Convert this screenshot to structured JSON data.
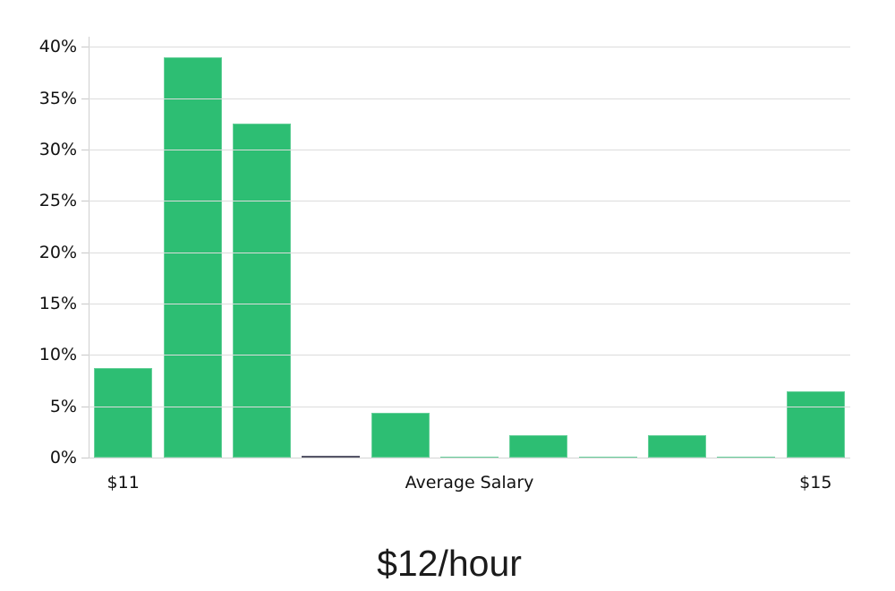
{
  "chart_data": {
    "type": "bar",
    "title": "$12/hour",
    "xlabel": "",
    "ylabel": "",
    "values": [
      8.7,
      39,
      32.5,
      0.15,
      4.35,
      0.1,
      2.2,
      0.1,
      2.2,
      0.1,
      6.5
    ],
    "bar_colors": [
      "#2dbe73",
      "#2dbe73",
      "#2dbe73",
      "#15152e",
      "#2dbe73",
      "#2dbe73",
      "#2dbe73",
      "#2dbe73",
      "#2dbe73",
      "#2dbe73",
      "#2dbe73"
    ],
    "unit": "%",
    "ylim": [
      0,
      41
    ],
    "grid": "horizontal",
    "legend": "none",
    "y_ticks": [
      {
        "label": "0%",
        "value": 0
      },
      {
        "label": "5%",
        "value": 5
      },
      {
        "label": "10%",
        "value": 10
      },
      {
        "label": "15%",
        "value": 15
      },
      {
        "label": "20%",
        "value": 20
      },
      {
        "label": "25%",
        "value": 25
      },
      {
        "label": "30%",
        "value": 30
      },
      {
        "label": "35%",
        "value": 35
      },
      {
        "label": "40%",
        "value": 40
      }
    ],
    "x_ticks": [
      {
        "label": "$11",
        "bar_index": 0
      },
      {
        "label": "Average Salary",
        "bar_index": 5
      },
      {
        "label": "$15",
        "bar_index": 10
      }
    ],
    "colors": {
      "bar_green": "#2dbe73",
      "bar_dark": "#15152e",
      "gridline": "#dcdcdc",
      "axis": "#d0d0d0",
      "text": "#111111"
    }
  }
}
